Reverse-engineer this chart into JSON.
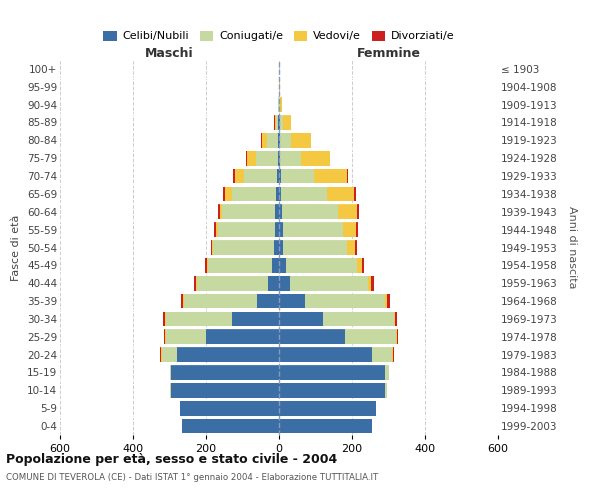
{
  "age_groups": [
    "0-4",
    "5-9",
    "10-14",
    "15-19",
    "20-24",
    "25-29",
    "30-34",
    "35-39",
    "40-44",
    "45-49",
    "50-54",
    "55-59",
    "60-64",
    "65-69",
    "70-74",
    "75-79",
    "80-84",
    "85-89",
    "90-94",
    "95-99",
    "100+"
  ],
  "birth_years": [
    "1999-2003",
    "1994-1998",
    "1989-1993",
    "1984-1988",
    "1979-1983",
    "1974-1978",
    "1969-1973",
    "1964-1968",
    "1959-1963",
    "1954-1958",
    "1949-1953",
    "1944-1948",
    "1939-1943",
    "1934-1938",
    "1929-1933",
    "1924-1928",
    "1919-1923",
    "1914-1918",
    "1909-1913",
    "1904-1908",
    "≤ 1903"
  ],
  "males": {
    "celibi": [
      265,
      270,
      295,
      295,
      280,
      200,
      130,
      60,
      30,
      20,
      15,
      12,
      10,
      8,
      6,
      4,
      2,
      2,
      0,
      0,
      0
    ],
    "coniugati": [
      0,
      0,
      5,
      5,
      40,
      110,
      180,
      200,
      195,
      175,
      165,
      155,
      145,
      120,
      90,
      60,
      30,
      6,
      2,
      0,
      0
    ],
    "vedovi": [
      0,
      0,
      0,
      0,
      4,
      3,
      3,
      4,
      3,
      3,
      3,
      5,
      8,
      20,
      25,
      25,
      15,
      4,
      1,
      0,
      0
    ],
    "divorziati": [
      0,
      0,
      0,
      0,
      2,
      3,
      5,
      5,
      5,
      5,
      3,
      5,
      3,
      5,
      4,
      2,
      1,
      1,
      0,
      0,
      0
    ]
  },
  "females": {
    "nubili": [
      255,
      265,
      290,
      290,
      255,
      180,
      120,
      70,
      30,
      18,
      12,
      10,
      8,
      6,
      5,
      4,
      3,
      2,
      0,
      0,
      0
    ],
    "coniugate": [
      0,
      0,
      5,
      10,
      55,
      140,
      195,
      220,
      215,
      195,
      175,
      165,
      155,
      125,
      90,
      55,
      30,
      10,
      4,
      1,
      0
    ],
    "vedove": [
      0,
      0,
      0,
      0,
      2,
      2,
      3,
      5,
      8,
      15,
      20,
      35,
      50,
      75,
      90,
      80,
      55,
      20,
      5,
      1,
      0
    ],
    "divorziate": [
      0,
      0,
      0,
      0,
      2,
      3,
      5,
      8,
      8,
      6,
      6,
      6,
      5,
      5,
      4,
      2,
      1,
      1,
      0,
      0,
      0
    ]
  },
  "colors": {
    "celibi": "#3A6EA5",
    "coniugati": "#C5D9A0",
    "vedovi": "#F5C842",
    "divorziati": "#CC2020"
  },
  "title": "Popolazione per età, sesso e stato civile - 2004",
  "subtitle": "COMUNE DI TEVEROLA (CE) - Dati ISTAT 1° gennaio 2004 - Elaborazione TUTTITALIA.IT",
  "xlabel_left": "Maschi",
  "xlabel_right": "Femmine",
  "ylabel_left": "Fasce di età",
  "ylabel_right": "Anni di nascita",
  "xlim": 600,
  "bg_color": "#ffffff",
  "grid_color": "#cccccc"
}
